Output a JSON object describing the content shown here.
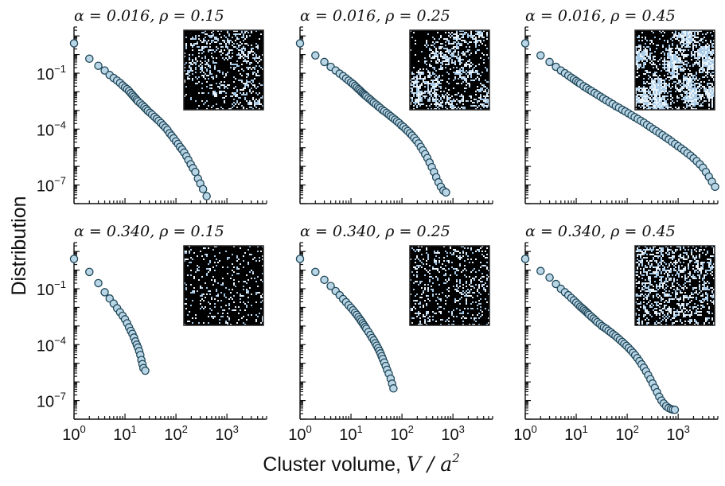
{
  "figure": {
    "xlabel_text": "Cluster volume, ",
    "xlabel_math": "V / a",
    "xlabel_exp": "2",
    "ylabel": "Distribution"
  },
  "chart_data": {
    "type": "scatter",
    "xscale": "log",
    "yscale": "log",
    "xlim": [
      1,
      6000
    ],
    "ylim": [
      1e-08,
      30
    ],
    "x_ticks": [
      {
        "base": "10",
        "exp": "0",
        "value": 1
      },
      {
        "base": "10",
        "exp": "1",
        "value": 10
      },
      {
        "base": "10",
        "exp": "2",
        "value": 100
      },
      {
        "base": "10",
        "exp": "3",
        "value": 1000
      }
    ],
    "y_ticks": [
      {
        "base": "10",
        "exp": "−1",
        "value": 0.1
      },
      {
        "base": "10",
        "exp": "−4",
        "value": 0.0001
      },
      {
        "base": "10",
        "exp": "−7",
        "value": 1e-07
      }
    ],
    "colors": {
      "marker_fill": "#b9d6e6",
      "marker_edge": "#1f4658",
      "inset_bg": "#000000",
      "inset_speck": "#a9cbe8"
    },
    "panels": [
      {
        "title": "α = 0.016, ρ = 0.15",
        "inset_density": 0.22,
        "inset_clumpy": 0.7,
        "points": [
          [
            1,
            4.0
          ],
          [
            2,
            0.6
          ],
          [
            3,
            0.25
          ],
          [
            4,
            0.14
          ],
          [
            5,
            0.08
          ],
          [
            6,
            0.055
          ],
          [
            7,
            0.04
          ],
          [
            8,
            0.03
          ],
          [
            9,
            0.022
          ],
          [
            10,
            0.017
          ],
          [
            11,
            0.014
          ],
          [
            12,
            0.011
          ],
          [
            13,
            0.0085
          ],
          [
            14,
            0.0068
          ],
          [
            15,
            0.0055
          ],
          [
            16,
            0.0045
          ],
          [
            17,
            0.0037
          ],
          [
            18,
            0.0031
          ],
          [
            20,
            0.0024
          ],
          [
            22,
            0.0019
          ],
          [
            24,
            0.0015
          ],
          [
            26,
            0.0012
          ],
          [
            28,
            0.00095
          ],
          [
            31,
            0.00075
          ],
          [
            34,
            0.0006
          ],
          [
            38,
            0.00045
          ],
          [
            42,
            0.00035
          ],
          [
            46,
            0.00028
          ],
          [
            51,
            0.00021
          ],
          [
            56,
            0.00016
          ],
          [
            62,
            0.00012
          ],
          [
            68,
            9e-05
          ],
          [
            75,
            6e-05
          ],
          [
            82,
            4.5e-05
          ],
          [
            90,
            3.2e-05
          ],
          [
            100,
            2.2e-05
          ],
          [
            110,
            1.6e-05
          ],
          [
            120,
            1.1e-05
          ],
          [
            132,
            8e-06
          ],
          [
            145,
            5.5e-06
          ],
          [
            160,
            3.5e-06
          ],
          [
            175,
            2.2e-06
          ],
          [
            195,
            1.3e-06
          ],
          [
            215,
            8e-07
          ],
          [
            240,
            5e-07
          ],
          [
            270,
            2.2e-07
          ],
          [
            300,
            1.2e-07
          ],
          [
            340,
            6e-08
          ],
          [
            400,
            2.5e-08
          ]
        ]
      },
      {
        "title": "α = 0.016, ρ = 0.25",
        "inset_density": 0.32,
        "inset_clumpy": 0.8,
        "points": [
          [
            1,
            4.0
          ],
          [
            2,
            0.9
          ],
          [
            3,
            0.4
          ],
          [
            4,
            0.22
          ],
          [
            5,
            0.14
          ],
          [
            6,
            0.095
          ],
          [
            7,
            0.07
          ],
          [
            8,
            0.052
          ],
          [
            9,
            0.04
          ],
          [
            10,
            0.032
          ],
          [
            11,
            0.026
          ],
          [
            12,
            0.021
          ],
          [
            13,
            0.017
          ],
          [
            14,
            0.014
          ],
          [
            15,
            0.012
          ],
          [
            16,
            0.0099
          ],
          [
            17,
            0.0085
          ],
          [
            18,
            0.0074
          ],
          [
            19,
            0.0065
          ],
          [
            20,
            0.0057
          ],
          [
            22,
            0.0046
          ],
          [
            24,
            0.0038
          ],
          [
            26,
            0.0031
          ],
          [
            28,
            0.0026
          ],
          [
            31,
            0.0021
          ],
          [
            34,
            0.0017
          ],
          [
            37,
            0.0014
          ],
          [
            41,
            0.0011
          ],
          [
            45,
            0.00091
          ],
          [
            50,
            0.00074
          ],
          [
            55,
            0.0006
          ],
          [
            60,
            0.00049
          ],
          [
            66,
            0.0004
          ],
          [
            73,
            0.00032
          ],
          [
            80,
            0.00026
          ],
          [
            88,
            0.00021
          ],
          [
            97,
            0.00016
          ],
          [
            107,
            0.00013
          ],
          [
            118,
            0.0001
          ],
          [
            130,
            7.8e-05
          ],
          [
            143,
            6e-05
          ],
          [
            158,
            4.5e-05
          ],
          [
            174,
            3.3e-05
          ],
          [
            192,
            2.4e-05
          ],
          [
            212,
            1.7e-05
          ],
          [
            234,
            1.1e-05
          ],
          [
            258,
            7.2e-06
          ],
          [
            285,
            4.5e-06
          ],
          [
            315,
            2.8e-06
          ],
          [
            348,
            1.6e-06
          ],
          [
            385,
            9e-07
          ],
          [
            425,
            5e-07
          ],
          [
            470,
            2.6e-07
          ],
          [
            520,
            1.4e-07
          ],
          [
            580,
            8e-08
          ],
          [
            650,
            5e-08
          ],
          [
            730,
            4e-08
          ]
        ]
      },
      {
        "title": "α = 0.016, ρ = 0.45",
        "inset_density": 0.5,
        "inset_clumpy": 0.85,
        "points": [
          [
            1,
            4.0
          ],
          [
            2,
            0.9
          ],
          [
            3,
            0.4
          ],
          [
            4,
            0.22
          ],
          [
            5,
            0.14
          ],
          [
            6,
            0.1
          ],
          [
            7,
            0.075
          ],
          [
            8,
            0.058
          ],
          [
            9,
            0.047
          ],
          [
            10,
            0.038
          ],
          [
            11,
            0.032
          ],
          [
            12,
            0.027
          ],
          [
            14,
            0.02
          ],
          [
            16,
            0.016
          ],
          [
            18,
            0.013
          ],
          [
            20,
            0.011
          ],
          [
            23,
            0.0087
          ],
          [
            26,
            0.007
          ],
          [
            30,
            0.0055
          ],
          [
            34,
            0.0044
          ],
          [
            39,
            0.0035
          ],
          [
            45,
            0.0028
          ],
          [
            52,
            0.0022
          ],
          [
            60,
            0.0017
          ],
          [
            69,
            0.0014
          ],
          [
            80,
            0.0011
          ],
          [
            92,
            0.00088
          ],
          [
            106,
            0.0007
          ],
          [
            122,
            0.00055
          ],
          [
            140,
            0.00044
          ],
          [
            161,
            0.00035
          ],
          [
            185,
            0.00028
          ],
          [
            213,
            0.00022
          ],
          [
            245,
            0.00017
          ],
          [
            282,
            0.00013
          ],
          [
            325,
            0.0001
          ],
          [
            374,
            7.8e-05
          ],
          [
            430,
            6.1e-05
          ],
          [
            495,
            4.7e-05
          ],
          [
            570,
            3.6e-05
          ],
          [
            655,
            2.8e-05
          ],
          [
            755,
            2.1e-05
          ],
          [
            870,
            1.6e-05
          ],
          [
            1000,
            1.2e-05
          ],
          [
            1150,
            9.2e-06
          ],
          [
            1320,
            6.9e-06
          ],
          [
            1520,
            5.1e-06
          ],
          [
            1750,
            3.8e-06
          ],
          [
            2010,
            2.7e-06
          ],
          [
            2310,
            1.9e-06
          ],
          [
            2660,
            1.3e-06
          ],
          [
            3060,
            8.5e-07
          ],
          [
            3500,
            5e-07
          ],
          [
            4000,
            2.8e-07
          ],
          [
            4600,
            1.5e-07
          ],
          [
            5300,
            8e-08
          ]
        ]
      },
      {
        "title": "α = 0.340, ρ = 0.15",
        "inset_density": 0.12,
        "inset_clumpy": 0.05,
        "points": [
          [
            1,
            4.0
          ],
          [
            2,
            0.8
          ],
          [
            3,
            0.2
          ],
          [
            4,
            0.065
          ],
          [
            5,
            0.03
          ],
          [
            6,
            0.016
          ],
          [
            7,
            0.009
          ],
          [
            8,
            0.0055
          ],
          [
            9,
            0.0035
          ],
          [
            10,
            0.0023
          ],
          [
            11,
            0.0014
          ],
          [
            12,
            0.00085
          ],
          [
            13,
            0.00055
          ],
          [
            14,
            0.00038
          ],
          [
            15,
            0.00024
          ],
          [
            16,
            0.00015
          ],
          [
            17,
            0.0001
          ],
          [
            18,
            7e-05
          ],
          [
            19,
            4.5e-05
          ],
          [
            20,
            2.8e-05
          ],
          [
            21,
            1.5e-05
          ],
          [
            22,
            9e-06
          ],
          [
            23,
            5.5e-06
          ],
          [
            25,
            4e-06
          ]
        ]
      },
      {
        "title": "α = 0.340, ρ = 0.25",
        "inset_density": 0.2,
        "inset_clumpy": 0.1,
        "points": [
          [
            1,
            4.0
          ],
          [
            2,
            0.8
          ],
          [
            3,
            0.3
          ],
          [
            4,
            0.14
          ],
          [
            5,
            0.075
          ],
          [
            6,
            0.045
          ],
          [
            7,
            0.028
          ],
          [
            8,
            0.019
          ],
          [
            9,
            0.013
          ],
          [
            10,
            0.0095
          ],
          [
            11,
            0.007
          ],
          [
            12,
            0.0052
          ],
          [
            13,
            0.004
          ],
          [
            14,
            0.003
          ],
          [
            15,
            0.0023
          ],
          [
            16,
            0.0018
          ],
          [
            17,
            0.0014
          ],
          [
            18,
            0.0011
          ],
          [
            19,
            0.00088
          ],
          [
            20,
            0.0007
          ],
          [
            22,
            0.00048
          ],
          [
            24,
            0.00033
          ],
          [
            26,
            0.00023
          ],
          [
            28,
            0.00017
          ],
          [
            30,
            0.00012
          ],
          [
            32,
            8.8e-05
          ],
          [
            34,
            6.4e-05
          ],
          [
            36,
            4.7e-05
          ],
          [
            38,
            3.4e-05
          ],
          [
            40,
            2.4e-05
          ],
          [
            42,
            1.7e-05
          ],
          [
            45,
            1.1e-05
          ],
          [
            48,
            7.2e-06
          ],
          [
            51,
            4.5e-06
          ],
          [
            55,
            2.8e-06
          ],
          [
            60,
            1.5e-06
          ],
          [
            64,
            8e-07
          ],
          [
            68,
            4.5e-07
          ]
        ]
      },
      {
        "title": "α = 0.340, ρ = 0.45",
        "inset_density": 0.36,
        "inset_clumpy": 0.25,
        "points": [
          [
            1,
            4.0
          ],
          [
            2,
            0.9
          ],
          [
            3,
            0.4
          ],
          [
            4,
            0.18
          ],
          [
            5,
            0.1
          ],
          [
            6,
            0.065
          ],
          [
            7,
            0.045
          ],
          [
            8,
            0.032
          ],
          [
            9,
            0.024
          ],
          [
            10,
            0.018
          ],
          [
            11,
            0.014
          ],
          [
            12,
            0.011
          ],
          [
            13,
            0.0092
          ],
          [
            14,
            0.0077
          ],
          [
            15,
            0.0065
          ],
          [
            16,
            0.0055
          ],
          [
            17,
            0.0047
          ],
          [
            18,
            0.004
          ],
          [
            20,
            0.0031
          ],
          [
            22,
            0.0025
          ],
          [
            24,
            0.002
          ],
          [
            26,
            0.0016
          ],
          [
            29,
            0.0013
          ],
          [
            32,
            0.001
          ],
          [
            35,
            0.00085
          ],
          [
            39,
            0.0007
          ],
          [
            43,
            0.00056
          ],
          [
            48,
            0.00045
          ],
          [
            53,
            0.00036
          ],
          [
            59,
            0.00029
          ],
          [
            65,
            0.00023
          ],
          [
            72,
            0.00018
          ],
          [
            80,
            0.00014
          ],
          [
            88,
            0.00011
          ],
          [
            97,
            8.6e-05
          ],
          [
            107,
            6.6e-05
          ],
          [
            118,
            5e-05
          ],
          [
            130,
            3.7e-05
          ],
          [
            143,
            2.7e-05
          ],
          [
            158,
            1.9e-05
          ],
          [
            174,
            1.3e-05
          ],
          [
            192,
            8.8e-06
          ],
          [
            212,
            5.8e-06
          ],
          [
            234,
            3.7e-06
          ],
          [
            258,
            2.3e-06
          ],
          [
            285,
            1.4e-06
          ],
          [
            315,
            8.2e-07
          ],
          [
            348,
            4.8e-07
          ],
          [
            385,
            2.8e-07
          ],
          [
            425,
            1.6e-07
          ],
          [
            470,
            1e-07
          ],
          [
            520,
            7e-08
          ],
          [
            580,
            5e-08
          ],
          [
            650,
            4e-08
          ],
          [
            720,
            3.5e-08
          ],
          [
            790,
            3.3e-08
          ],
          [
            860,
            3.2e-08
          ]
        ]
      }
    ]
  }
}
